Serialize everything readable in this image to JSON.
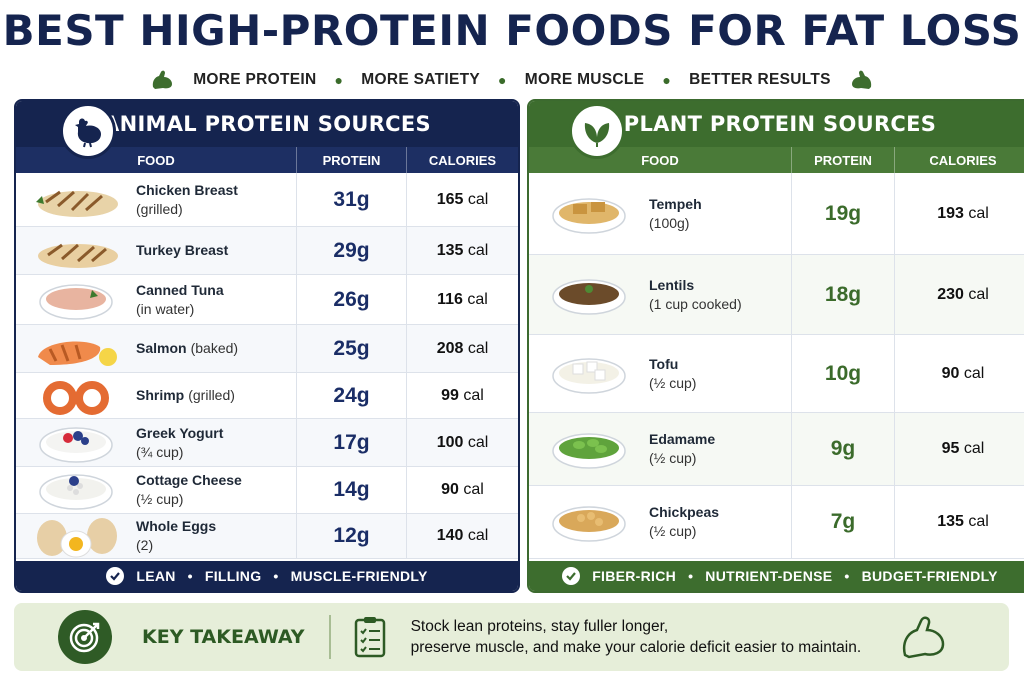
{
  "title": "BEST HIGH-PROTEIN FOODS FOR FAT LOSS",
  "subtitle": [
    "MORE PROTEIN",
    "MORE SATIETY",
    "MORE MUSCLE",
    "BETTER RESULTS"
  ],
  "colors": {
    "navy": "#15244f",
    "green": "#3d6d2e",
    "light_green": "#e6eed9"
  },
  "animal": {
    "title": "ANIMAL PROTEIN SOURCES",
    "icon": "chicken-icon",
    "columns": [
      "FOOD",
      "PROTEIN",
      "CALORIES"
    ],
    "rows": [
      {
        "name": "Chicken Breast",
        "detail": "(grilled)",
        "protein": "31g",
        "calories": "165",
        "unit": "cal",
        "icon": "chicken-breast-icon"
      },
      {
        "name": "Turkey Breast",
        "detail": "",
        "protein": "29g",
        "calories": "135",
        "unit": "cal",
        "icon": "turkey-breast-icon"
      },
      {
        "name": "Canned Tuna",
        "detail": "(in water)",
        "protein": "26g",
        "calories": "116",
        "unit": "cal",
        "icon": "tuna-icon"
      },
      {
        "name": "Salmon",
        "detail": "(baked)",
        "protein": "25g",
        "calories": "208",
        "unit": "cal",
        "icon": "salmon-icon"
      },
      {
        "name": "Shrimp",
        "detail": "(grilled)",
        "protein": "24g",
        "calories": "99",
        "unit": "cal",
        "icon": "shrimp-icon"
      },
      {
        "name": "Greek Yogurt",
        "detail": "(¾ cup)",
        "protein": "17g",
        "calories": "100",
        "unit": "cal",
        "icon": "yogurt-icon"
      },
      {
        "name": "Cottage Cheese",
        "detail": "(½ cup)",
        "protein": "14g",
        "calories": "90",
        "unit": "cal",
        "icon": "cottage-cheese-icon"
      },
      {
        "name": "Whole Eggs",
        "detail": "(2)",
        "protein": "12g",
        "calories": "140",
        "unit": "cal",
        "icon": "eggs-icon"
      }
    ],
    "footer": [
      "LEAN",
      "FILLING",
      "MUSCLE-FRIENDLY"
    ]
  },
  "plant": {
    "title": "PLANT PROTEIN SOURCES",
    "icon": "leaf-icon",
    "columns": [
      "FOOD",
      "PROTEIN",
      "CALORIES"
    ],
    "rows": [
      {
        "name": "Tempeh",
        "detail": "(100g)",
        "protein": "19g",
        "calories": "193",
        "unit": "cal",
        "icon": "tempeh-icon"
      },
      {
        "name": "Lentils",
        "detail": "(1 cup cooked)",
        "protein": "18g",
        "calories": "230",
        "unit": "cal",
        "icon": "lentils-icon"
      },
      {
        "name": "Tofu",
        "detail": "(½ cup)",
        "protein": "10g",
        "calories": "90",
        "unit": "cal",
        "icon": "tofu-icon"
      },
      {
        "name": "Edamame",
        "detail": "(½ cup)",
        "protein": "9g",
        "calories": "95",
        "unit": "cal",
        "icon": "edamame-icon"
      },
      {
        "name": "Chickpeas",
        "detail": "(½ cup)",
        "protein": "7g",
        "calories": "135",
        "unit": "cal",
        "icon": "chickpeas-icon"
      }
    ],
    "footer": [
      "FIBER-RICH",
      "NUTRIENT-DENSE",
      "BUDGET-FRIENDLY"
    ]
  },
  "takeaway": {
    "label": "KEY TAKEAWAY",
    "line1": "Stock lean proteins, stay fuller longer,",
    "line2": "preserve muscle, and make your calorie deficit easier to maintain.",
    "icon": "target-icon"
  }
}
